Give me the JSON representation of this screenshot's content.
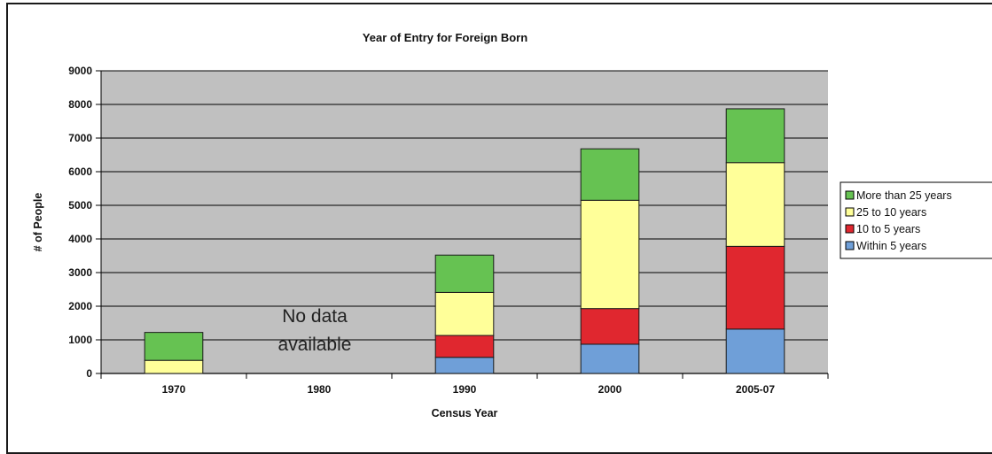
{
  "chart_data": {
    "type": "bar",
    "stacked": true,
    "title": "Year of Entry for Foreign Born",
    "xlabel": "Census Year",
    "ylabel": "# of People",
    "categories": [
      "1970",
      "1980",
      "1990",
      "2000",
      "2005-07"
    ],
    "ylim": [
      0,
      9000
    ],
    "yticks": [
      0,
      1000,
      2000,
      3000,
      4000,
      5000,
      6000,
      7000,
      8000,
      9000
    ],
    "grid": true,
    "legend_position": "right",
    "series": [
      {
        "name": "Within 5 years",
        "color": "#6f9fd8",
        "values": [
          0,
          null,
          480,
          870,
          1320
        ]
      },
      {
        "name": "10 to 5 years",
        "color": "#e0272f",
        "values": [
          0,
          null,
          650,
          1060,
          2460
        ]
      },
      {
        "name": "25 to 10 years",
        "color": "#ffff99",
        "values": [
          390,
          null,
          1280,
          3220,
          2490
        ]
      },
      {
        "name": "More than 25 years",
        "color": "#66c252",
        "values": [
          830,
          null,
          1110,
          1530,
          1600
        ]
      }
    ],
    "legend_order": [
      "More than 25 years",
      "25 to 10 years",
      "10 to 5 years",
      "Within 5 years"
    ],
    "annotations": [
      {
        "category": "1980",
        "text_lines": [
          "No data",
          "available"
        ]
      }
    ]
  }
}
